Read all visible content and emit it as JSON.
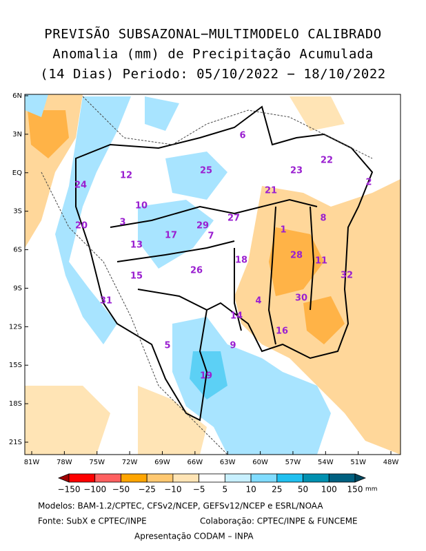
{
  "title": [
    "PREVISÃO SUBSAZONAL−MULTIMODELO CALIBRADO",
    "Anomalia (mm) de Precipitação Acumulada",
    "(14 Dias) Periodo: 05/10/2022 − 18/10/2022"
  ],
  "lon_ticks": [
    {
      "value": -81,
      "label": "81W"
    },
    {
      "value": -78,
      "label": "78W"
    },
    {
      "value": -75,
      "label": "75W"
    },
    {
      "value": -72,
      "label": "72W"
    },
    {
      "value": -69,
      "label": "69W"
    },
    {
      "value": -66,
      "label": "66W"
    },
    {
      "value": -63,
      "label": "63W"
    },
    {
      "value": -60,
      "label": "60W"
    },
    {
      "value": -57,
      "label": "57W"
    },
    {
      "value": -54,
      "label": "54W"
    },
    {
      "value": -51,
      "label": "51W"
    },
    {
      "value": -48,
      "label": "48W"
    }
  ],
  "lat_ticks": [
    {
      "value": 6,
      "label": "6N"
    },
    {
      "value": 3,
      "label": "3N"
    },
    {
      "value": 0,
      "label": "EQ"
    },
    {
      "value": -3,
      "label": "3S"
    },
    {
      "value": -6,
      "label": "6S"
    },
    {
      "value": -9,
      "label": "9S"
    },
    {
      "value": -12,
      "label": "12S"
    },
    {
      "value": -15,
      "label": "15S"
    },
    {
      "value": -18,
      "label": "18S"
    },
    {
      "value": -21,
      "label": "21S"
    }
  ],
  "basins": [
    "6",
    "25",
    "12",
    "24",
    "23",
    "22",
    "21",
    "2",
    "10",
    "3",
    "20",
    "27",
    "29",
    "7",
    "1",
    "8",
    "13",
    "17",
    "18",
    "28",
    "11",
    "15",
    "26",
    "32",
    "31",
    "4",
    "30",
    "14",
    "16",
    "9",
    "5",
    "19"
  ],
  "colorbar": {
    "labels": [
      "−150",
      "−100",
      "−50",
      "−25",
      "−10",
      "−5",
      "5",
      "10",
      "25",
      "50",
      "100",
      "150"
    ],
    "colors": [
      "#a00000",
      "#ff0000",
      "#ff6060",
      "#ffa500",
      "#ffc870",
      "#ffe4b5",
      "#ffffff",
      "#c8f0ff",
      "#80dcff",
      "#20c0f0",
      "#0090b0",
      "#006080",
      "#004860"
    ],
    "unit": "mm"
  },
  "footer": {
    "models": "Modelos: BAM-1.2/CPTEC, CFSv2/NCEP, GEFSv12/NCEP e ESRL/NOAA",
    "source": "Fonte: SubX e CPTEC/INPE",
    "collaboration": "Colaboração: CPTEC/INPE & FUNCEME",
    "presentation": "Apresentação CODAM – INPA"
  }
}
